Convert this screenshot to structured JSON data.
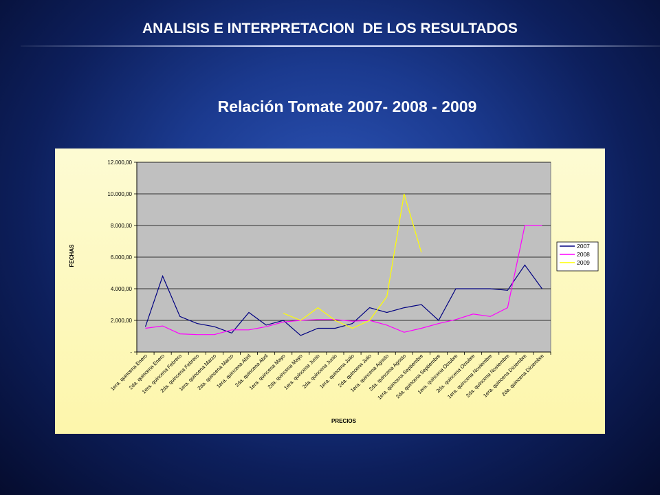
{
  "slide": {
    "title": "ANALISIS E INTERPRETACION  DE LOS RESULTADOS"
  },
  "chart_data": {
    "type": "line",
    "title": "Relación Tomate 2007- 2008 - 2009",
    "xlabel": "PRECIOS",
    "ylabel": "FECHAS",
    "ylim": [
      0,
      12000
    ],
    "y_ticks": [
      "-",
      "2.000,00",
      "4.000,00",
      "6.000,00",
      "8.000,00",
      "10.000,00",
      "12.000,00"
    ],
    "grid": true,
    "legend_position": "right",
    "categories": [
      "1era. quincena Enero",
      "2da. quincena Enero",
      "1era. quincena Febrero",
      "2da. quincena Febrero",
      "1era. quincena Marzo",
      "2da. quincena Marzo",
      "1era. quincena Abril",
      "2da. quincena Abril",
      "1era. quincena Mayo",
      "2da. quincena Mayo",
      "1era. quincena Junio",
      "2da. quincena Junio",
      "1era. quincena Julio",
      "2da. quincena Julio",
      "1era. quincena Agosto",
      "2da. quincena Agosto",
      "1era. quincena Septiembre",
      "2da. quincena Septiembre",
      "1era. quincena Octubre",
      "2da. quincena Octubre",
      "1era. quincena Noviembre",
      "2da. quincena Noviembre",
      "1era. quincena Diciembre",
      "2da. quincena Diciembre"
    ],
    "series": [
      {
        "name": "2007",
        "color": "#000080",
        "values": [
          1600,
          4800,
          2250,
          1800,
          1600,
          1200,
          2500,
          1700,
          2000,
          1050,
          1500,
          1500,
          1800,
          2800,
          2500,
          2800,
          3000,
          2000,
          4000,
          4000,
          4000,
          3900,
          5500,
          4000
        ]
      },
      {
        "name": "2008",
        "color": "#ff00ff",
        "values": [
          1500,
          1650,
          1150,
          1100,
          1100,
          1400,
          1400,
          1600,
          1900,
          2000,
          2050,
          2050,
          1950,
          2000,
          1700,
          1250,
          1500,
          1800,
          2050,
          2400,
          2250,
          2800,
          8000,
          8000
        ]
      },
      {
        "name": "2009",
        "color": "#ffff00",
        "values": [
          null,
          null,
          null,
          null,
          null,
          null,
          null,
          null,
          2450,
          2000,
          2800,
          2000,
          1500,
          2000,
          3500,
          10000,
          6300,
          null,
          null,
          null,
          null,
          null,
          null,
          null
        ]
      }
    ]
  }
}
